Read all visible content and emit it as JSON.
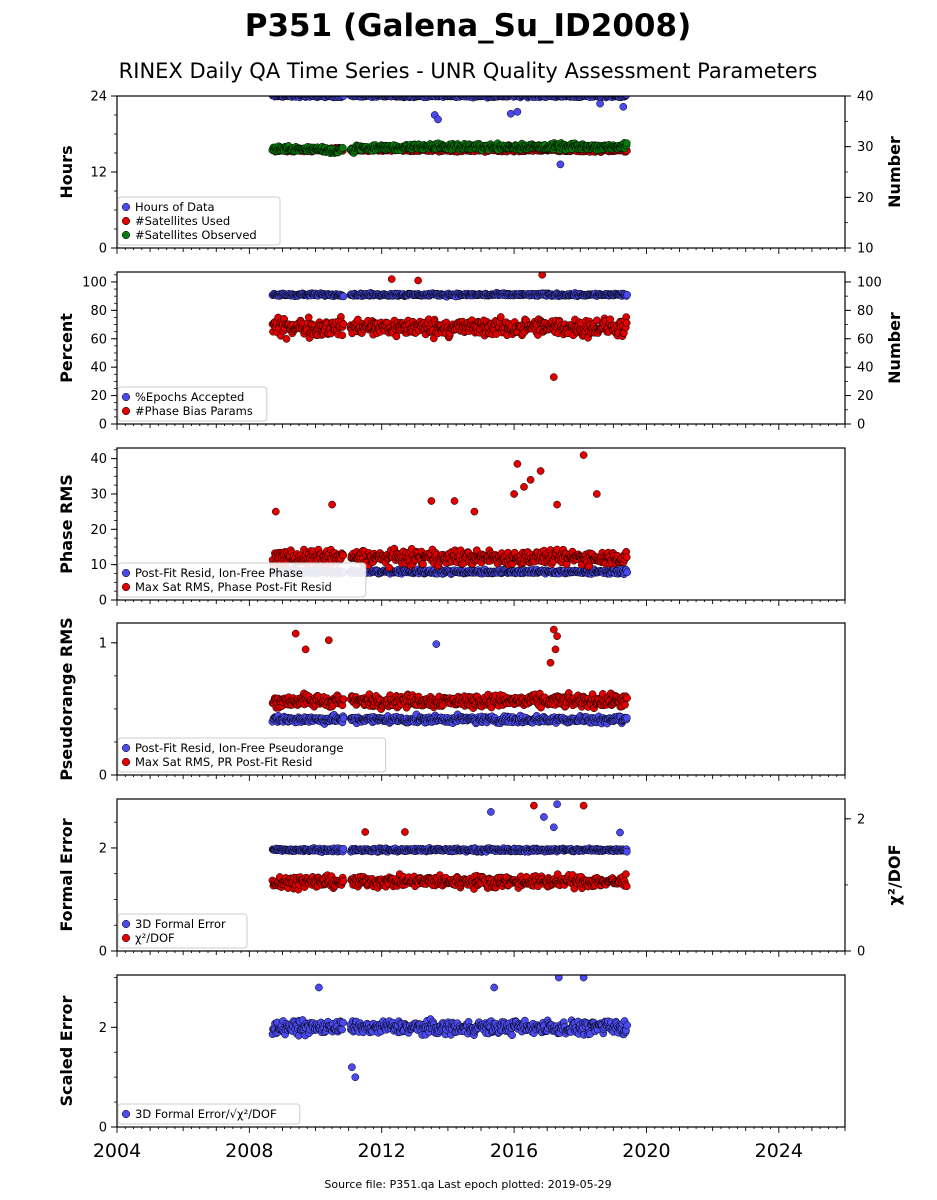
{
  "header": {
    "title": "P351 (Galena_Su_ID2008)",
    "subtitle": "RINEX Daily QA Time Series - UNR Quality Assessment Parameters",
    "footer": "Source file: P351.qa Last epoch plotted: 2019-05-29"
  },
  "colors": {
    "blue": "#4a4af0",
    "red": "#e00000",
    "green": "#0a7a0a"
  },
  "chart_data": [
    {
      "type": "scatter",
      "ylabel": "Hours",
      "y2label": "Number",
      "ylim": [
        0,
        24
      ],
      "y2lim": [
        10,
        40
      ],
      "yticks": [
        0,
        12,
        24
      ],
      "y2ticks": [
        10,
        20,
        30,
        40
      ],
      "legend": [
        {
          "label": "Hours of Data",
          "color": "#4a4af0"
        },
        {
          "label": "#Satellites Used",
          "color": "#e00000"
        },
        {
          "label": "#Satellites Observed",
          "color": "#0a7a0a"
        }
      ],
      "legend_loc": "lower-left",
      "series": [
        {
          "name": "Hours of Data",
          "color": "#4a4af0",
          "axis": "left",
          "base": 24,
          "spread": 0.3,
          "outliers": [
            [
              2013.6,
              21
            ],
            [
              2013.7,
              20.3
            ],
            [
              2015.9,
              21.2
            ],
            [
              2016.1,
              21.5
            ],
            [
              2017.4,
              13.2
            ],
            [
              2018.6,
              22.8
            ],
            [
              2019.3,
              22.3
            ]
          ]
        },
        {
          "name": "#Satellites Used",
          "color": "#e00000",
          "axis": "left",
          "base": 15.5,
          "spread": 0.5,
          "outliers": [
            [
              2017.3,
              15.5
            ]
          ]
        },
        {
          "name": "#Satellites Observed",
          "color": "#0a7a0a",
          "axis": "right",
          "base": 29.5,
          "spread": 0.9,
          "steps": [
            [
              2008.7,
              29.6
            ],
            [
              2010.3,
              29.2
            ],
            [
              2011.2,
              29.8
            ],
            [
              2013.0,
              30.0
            ],
            [
              2019.4,
              30.1
            ]
          ],
          "outliers": []
        }
      ],
      "x_start": 2008.7,
      "x_end": 2019.41,
      "gaps": [
        [
          2010.85,
          2011.05
        ]
      ]
    },
    {
      "type": "scatter",
      "ylabel": "Percent",
      "y2label": "Number",
      "ylim": [
        0,
        107
      ],
      "y2lim": [
        0,
        107
      ],
      "yticks": [
        0,
        20,
        40,
        60,
        80,
        100
      ],
      "y2ticks": [
        0,
        20,
        40,
        60,
        80,
        100
      ],
      "legend": [
        {
          "label": "%Epochs Accepted",
          "color": "#4a4af0"
        },
        {
          "label": "#Phase Bias Params",
          "color": "#e00000"
        }
      ],
      "legend_loc": "lower-left",
      "series": [
        {
          "name": "%Epochs Accepted",
          "color": "#4a4af0",
          "axis": "left",
          "base": 91,
          "spread": 1.5,
          "outliers": []
        },
        {
          "name": "#Phase Bias Params",
          "color": "#e00000",
          "axis": "right",
          "base": 68,
          "spread": 9,
          "outliers": [
            [
              2012.3,
              102
            ],
            [
              2013.1,
              101
            ],
            [
              2017.2,
              33
            ],
            [
              2016.85,
              105
            ]
          ]
        }
      ],
      "x_start": 2008.7,
      "x_end": 2019.41,
      "gaps": [
        [
          2010.85,
          2011.05
        ]
      ]
    },
    {
      "type": "scatter",
      "ylabel": "Phase RMS",
      "ylim": [
        0,
        43
      ],
      "yticks": [
        0,
        10,
        20,
        30,
        40
      ],
      "legend": [
        {
          "label": "Post-Fit Resid, Ion-Free Phase",
          "color": "#4a4af0"
        },
        {
          "label": "Max Sat RMS, Phase Post-Fit Resid",
          "color": "#e00000"
        }
      ],
      "legend_loc": "lower-left",
      "series": [
        {
          "name": "Post-Fit Resid, Ion-Free Phase",
          "color": "#4a4af0",
          "axis": "left",
          "base": 8,
          "spread": 0.9,
          "outliers": []
        },
        {
          "name": "Max Sat RMS, Phase Post-Fit Resid",
          "color": "#e00000",
          "axis": "left",
          "base": 12,
          "spread": 3,
          "outliers": [
            [
              2008.8,
              25
            ],
            [
              2010.5,
              27
            ],
            [
              2013.5,
              28
            ],
            [
              2014.2,
              28
            ],
            [
              2016.0,
              30
            ],
            [
              2016.1,
              38.5
            ],
            [
              2016.3,
              32
            ],
            [
              2016.5,
              34
            ],
            [
              2016.8,
              36.5
            ],
            [
              2017.3,
              27
            ],
            [
              2018.1,
              41
            ],
            [
              2018.5,
              30
            ],
            [
              2014.8,
              25
            ]
          ]
        }
      ],
      "x_start": 2008.7,
      "x_end": 2019.41,
      "gaps": [
        [
          2010.85,
          2011.05
        ]
      ]
    },
    {
      "type": "scatter",
      "ylabel": "Pseudorange RMS",
      "ylim": [
        0,
        1.15
      ],
      "yticks": [
        0,
        1
      ],
      "legend": [
        {
          "label": "Post-Fit Resid, Ion-Free Pseudorange",
          "color": "#4a4af0"
        },
        {
          "label": "Max Sat RMS, PR Post-Fit Resid",
          "color": "#e00000"
        }
      ],
      "legend_loc": "lower-left",
      "series": [
        {
          "name": "Post-Fit Resid, Ion-Free Pseudorange",
          "color": "#4a4af0",
          "axis": "left",
          "base": 0.42,
          "spread": 0.04,
          "outliers": [
            [
              2013.65,
              0.99
            ]
          ]
        },
        {
          "name": "Max Sat RMS, PR Post-Fit Resid",
          "color": "#e00000",
          "axis": "left",
          "base": 0.56,
          "spread": 0.07,
          "outliers": [
            [
              2009.4,
              1.07
            ],
            [
              2010.4,
              1.02
            ],
            [
              2009.7,
              0.95
            ],
            [
              2017.2,
              1.1
            ],
            [
              2017.3,
              1.05
            ],
            [
              2017.25,
              0.95
            ],
            [
              2017.1,
              0.85
            ]
          ]
        }
      ],
      "x_start": 2008.7,
      "x_end": 2019.41,
      "gaps": [
        [
          2010.85,
          2011.05
        ]
      ]
    },
    {
      "type": "scatter",
      "ylabel": "Formal Error",
      "y2label": "χ²/DOF",
      "ylim": [
        0,
        2.95
      ],
      "y2lim": [
        0,
        2.3
      ],
      "yticks": [
        0,
        2
      ],
      "y2ticks": [
        0,
        2
      ],
      "legend": [
        {
          "label": "3D Formal Error",
          "color": "#4a4af0"
        },
        {
          "label": "χ²/DOF",
          "color": "#e00000"
        }
      ],
      "legend_loc": "lower-left",
      "series": [
        {
          "name": "3D Formal Error",
          "color": "#4a4af0",
          "axis": "left",
          "base": 1.96,
          "spread": 0.05,
          "outliers": [
            [
              2015.3,
              2.7
            ],
            [
              2016.9,
              2.6
            ],
            [
              2017.3,
              2.85
            ],
            [
              2017.2,
              2.4
            ],
            [
              2019.2,
              2.3
            ]
          ]
        },
        {
          "name": "χ²/DOF",
          "color": "#e00000",
          "axis": "right",
          "base": 1.05,
          "spread": 0.13,
          "outliers": [
            [
              2016.6,
              2.2
            ],
            [
              2018.1,
              2.2
            ],
            [
              2011.5,
              1.8
            ],
            [
              2012.7,
              1.8
            ]
          ]
        }
      ],
      "x_start": 2008.7,
      "x_end": 2019.41,
      "gaps": [
        [
          2010.85,
          2011.05
        ]
      ]
    },
    {
      "type": "scatter",
      "ylabel": "Scaled Error",
      "ylim": [
        0,
        3.05
      ],
      "yticks": [
        0,
        2
      ],
      "legend": [
        {
          "label": "3D Formal Error/√χ²/DOF",
          "color": "#4a4af0"
        }
      ],
      "legend_loc": "lower-left",
      "series": [
        {
          "name": "3D Formal Error/√χ²/DOF",
          "color": "#4a4af0",
          "axis": "left",
          "base": 2.0,
          "spread": 0.2,
          "outliers": [
            [
              2011.2,
              1.0
            ],
            [
              2011.1,
              1.2
            ],
            [
              2017.35,
              3.0
            ],
            [
              2018.1,
              3.0
            ],
            [
              2015.4,
              2.8
            ],
            [
              2010.1,
              2.8
            ]
          ]
        }
      ],
      "x_start": 2008.7,
      "x_end": 2019.41,
      "gaps": [
        [
          2010.85,
          2011.05
        ]
      ]
    }
  ],
  "xaxis": {
    "xlim": [
      2004,
      2026
    ],
    "ticks": [
      2004,
      2008,
      2012,
      2016,
      2020,
      2024
    ],
    "tick_labels": [
      "2004",
      "2008",
      "2012",
      "2016",
      "2020",
      "2024"
    ]
  }
}
